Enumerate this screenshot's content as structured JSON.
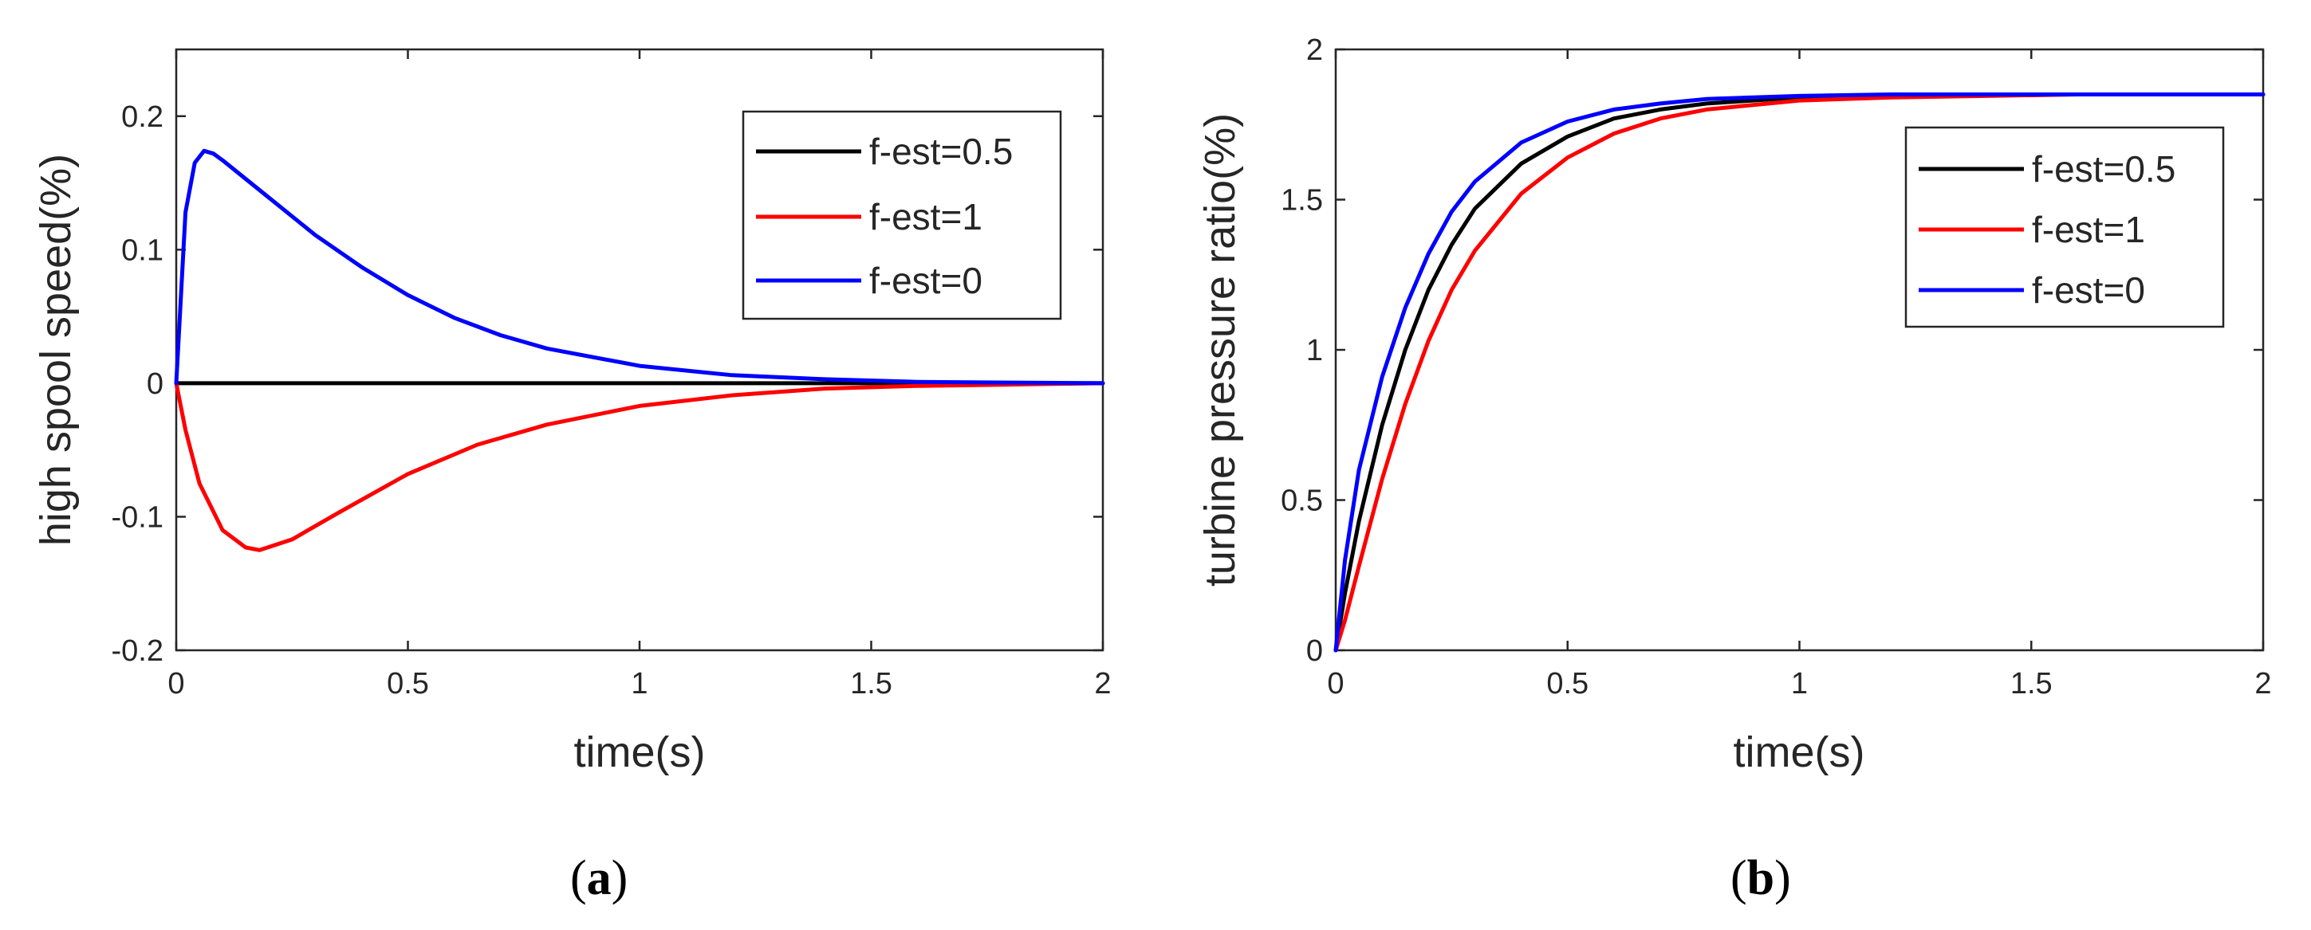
{
  "chart_data": [
    {
      "type": "line",
      "caption": "a",
      "xlabel": "time(s)",
      "ylabel": "high spool speed(%)",
      "xlim": [
        0,
        2
      ],
      "ylim": [
        -0.2,
        0.25
      ],
      "xticks": [
        0,
        0.5,
        1,
        1.5,
        2
      ],
      "xtick_labels": [
        "0",
        "0.5",
        "1",
        "1.5",
        "2"
      ],
      "yticks": [
        -0.2,
        -0.1,
        0,
        0.1,
        0.2
      ],
      "ytick_labels": [
        "-0.2",
        "-0.1",
        "0",
        "0.1",
        "0.2"
      ],
      "legend_position": "top-right",
      "series": [
        {
          "name": "f-est=0.5",
          "color": "#000000",
          "x": [
            0,
            0.5,
            1,
            1.5,
            2
          ],
          "y": [
            0,
            0,
            0,
            0,
            0
          ]
        },
        {
          "name": "f-est=1",
          "color": "#ff0000",
          "x": [
            0,
            0.02,
            0.05,
            0.1,
            0.15,
            0.18,
            0.25,
            0.35,
            0.5,
            0.65,
            0.8,
            1.0,
            1.2,
            1.4,
            1.6,
            1.8,
            2.0
          ],
          "y": [
            0,
            -0.035,
            -0.075,
            -0.11,
            -0.123,
            -0.125,
            -0.117,
            -0.097,
            -0.068,
            -0.046,
            -0.031,
            -0.017,
            -0.009,
            -0.004,
            -0.002,
            -0.001,
            0
          ]
        },
        {
          "name": "f-est=0",
          "color": "#0000ff",
          "x": [
            0,
            0.02,
            0.04,
            0.06,
            0.08,
            0.1,
            0.15,
            0.2,
            0.3,
            0.4,
            0.5,
            0.6,
            0.7,
            0.8,
            1.0,
            1.2,
            1.4,
            1.6,
            1.8,
            2.0
          ],
          "y": [
            0,
            0.128,
            0.165,
            0.174,
            0.172,
            0.167,
            0.153,
            0.139,
            0.111,
            0.087,
            0.066,
            0.049,
            0.036,
            0.026,
            0.013,
            0.006,
            0.003,
            0.001,
            0.0005,
            0
          ]
        }
      ]
    },
    {
      "type": "line",
      "caption": "b",
      "xlabel": "time(s)",
      "ylabel": "turbine pressure ratio(%)",
      "xlim": [
        0,
        2
      ],
      "ylim": [
        0,
        2
      ],
      "xticks": [
        0,
        0.5,
        1,
        1.5,
        2
      ],
      "xtick_labels": [
        "0",
        "0.5",
        "1",
        "1.5",
        "2"
      ],
      "yticks": [
        0,
        0.5,
        1,
        1.5,
        2
      ],
      "ytick_labels": [
        "0",
        "0.5",
        "1",
        "1.5",
        "2"
      ],
      "legend_position": "top-right",
      "series": [
        {
          "name": "f-est=0.5",
          "color": "#000000",
          "x": [
            0,
            0.02,
            0.05,
            0.1,
            0.15,
            0.2,
            0.25,
            0.3,
            0.4,
            0.5,
            0.6,
            0.7,
            0.8,
            0.9,
            1.0,
            1.2,
            1.4,
            1.6,
            1.8,
            2.0
          ],
          "y": [
            0,
            0.19,
            0.43,
            0.75,
            1.0,
            1.2,
            1.35,
            1.47,
            1.62,
            1.71,
            1.77,
            1.8,
            1.82,
            1.83,
            1.84,
            1.845,
            1.85,
            1.85,
            1.85,
            1.85
          ]
        },
        {
          "name": "f-est=1",
          "color": "#ff0000",
          "x": [
            0,
            0.02,
            0.05,
            0.1,
            0.15,
            0.2,
            0.25,
            0.3,
            0.4,
            0.5,
            0.6,
            0.7,
            0.8,
            0.9,
            1.0,
            1.2,
            1.4,
            1.6,
            1.8,
            2.0
          ],
          "y": [
            0,
            0.1,
            0.28,
            0.57,
            0.82,
            1.03,
            1.2,
            1.33,
            1.52,
            1.64,
            1.72,
            1.77,
            1.8,
            1.815,
            1.83,
            1.84,
            1.845,
            1.85,
            1.85,
            1.85
          ]
        },
        {
          "name": "f-est=0",
          "color": "#0000ff",
          "x": [
            0,
            0.02,
            0.05,
            0.1,
            0.15,
            0.2,
            0.25,
            0.3,
            0.4,
            0.5,
            0.6,
            0.7,
            0.8,
            0.9,
            1.0,
            1.2,
            1.4,
            1.6,
            1.8,
            2.0
          ],
          "y": [
            0,
            0.3,
            0.6,
            0.91,
            1.14,
            1.32,
            1.46,
            1.56,
            1.69,
            1.76,
            1.8,
            1.82,
            1.835,
            1.84,
            1.845,
            1.85,
            1.85,
            1.85,
            1.85,
            1.85
          ]
        }
      ]
    }
  ]
}
